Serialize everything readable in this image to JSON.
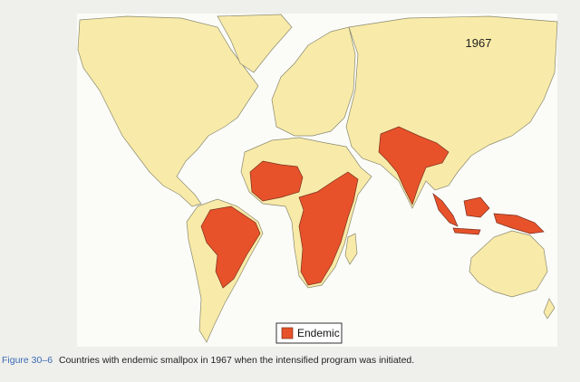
{
  "map": {
    "year_label": "1967",
    "legend": {
      "label": "Endemic"
    }
  },
  "caption": {
    "figure_number": "Figure 30–6",
    "text": "Countries with endemic smallpox in 1967 when the intensified program was initiated."
  }
}
